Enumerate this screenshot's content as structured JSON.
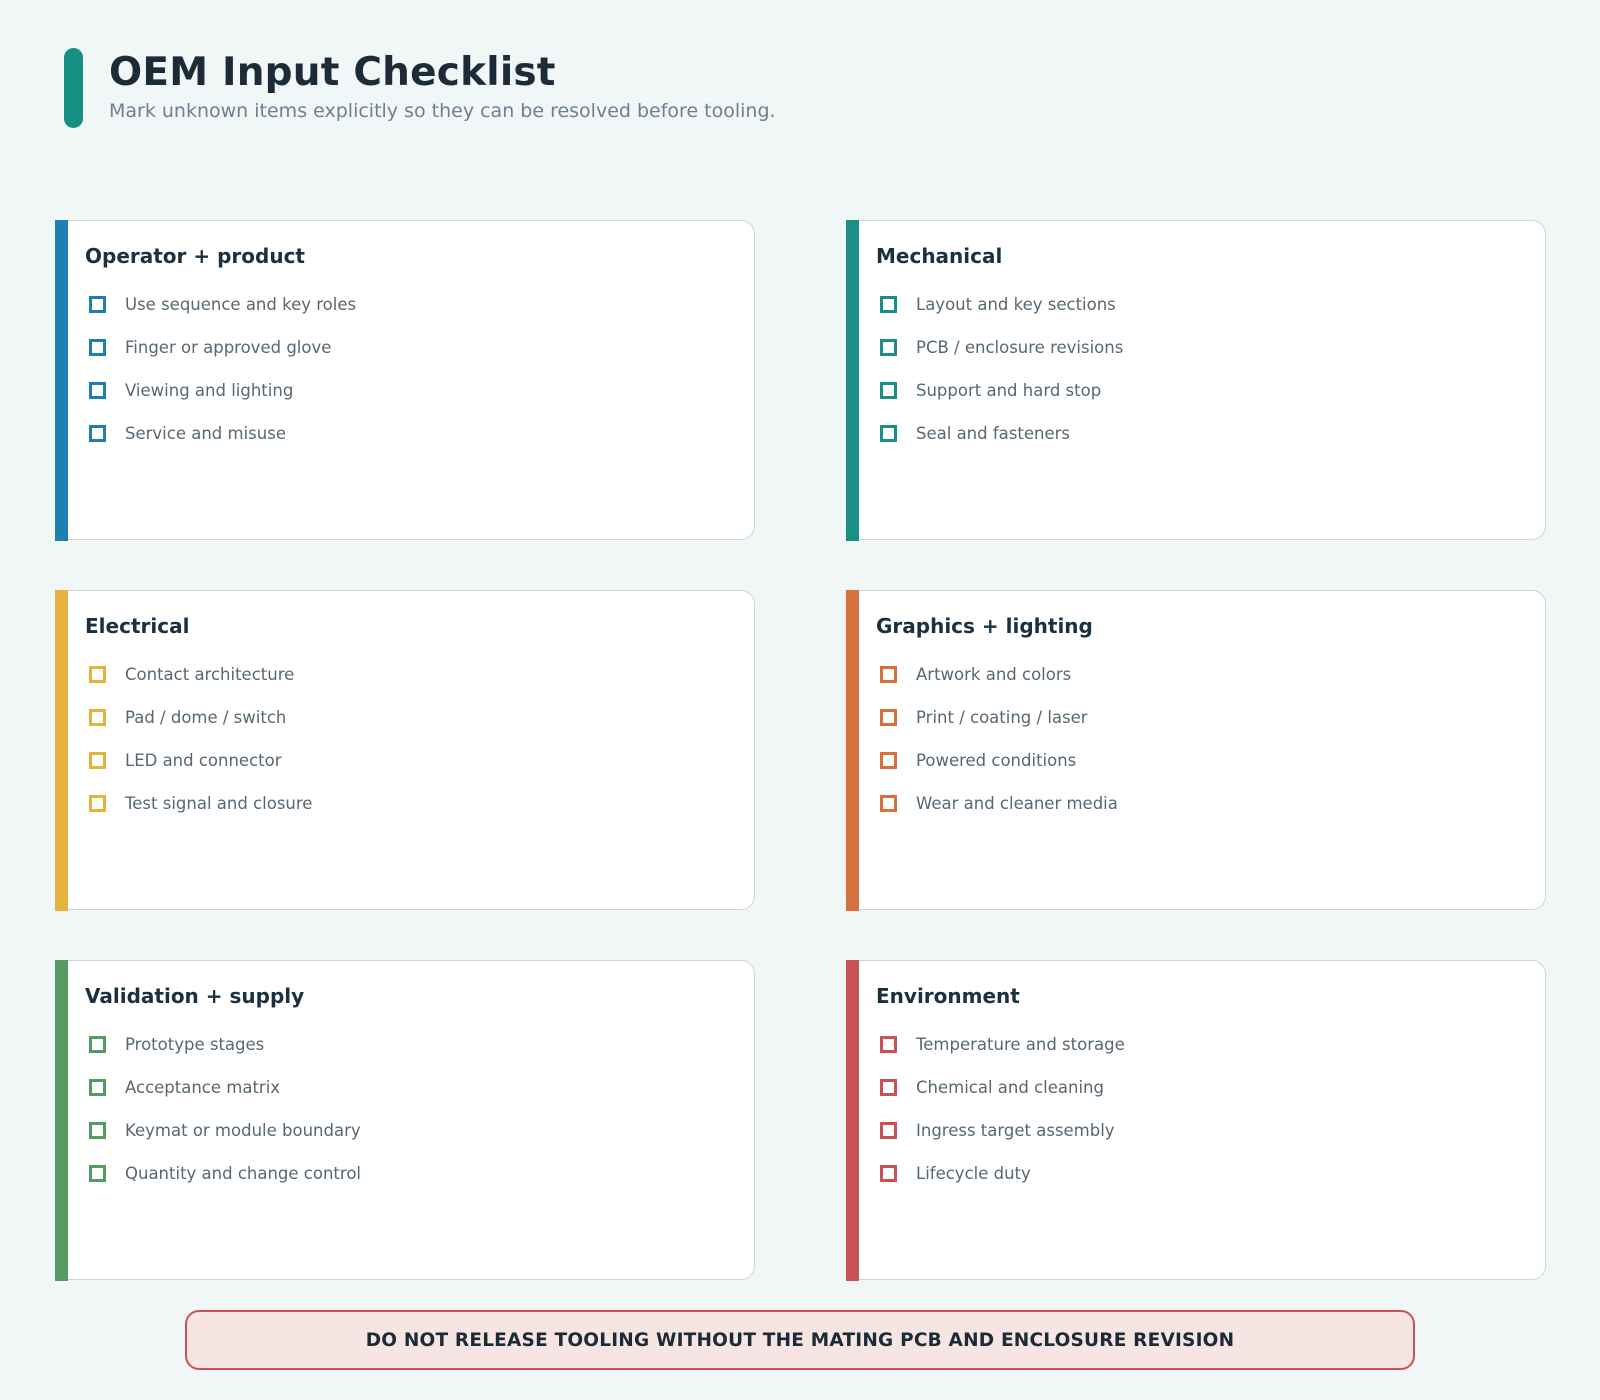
{
  "header": {
    "title": "OEM Input Checklist",
    "subtitle": "Mark unknown items explicitly so they can be resolved before tooling.",
    "accent_color": "#168f83"
  },
  "sections": [
    {
      "title": "Operator + product",
      "color": "#1f7fb0",
      "items": [
        "Use sequence and key roles",
        "Finger or approved glove",
        "Viewing and lighting",
        "Service and misuse"
      ]
    },
    {
      "title": "Mechanical",
      "color": "#1a8f84",
      "items": [
        "Layout and key sections",
        "PCB / enclosure revisions",
        "Support and hard stop",
        "Seal and fasteners"
      ]
    },
    {
      "title": "Electrical",
      "color": "#e6b23e",
      "items": [
        "Contact architecture",
        "Pad / dome / switch",
        "LED and connector",
        "Test signal and closure"
      ]
    },
    {
      "title": "Graphics + lighting",
      "color": "#d6703c",
      "items": [
        "Artwork and colors",
        "Print / coating / laser",
        "Powered conditions",
        "Wear and cleaner media"
      ]
    },
    {
      "title": "Validation + supply",
      "color": "#579a64",
      "items": [
        "Prototype stages",
        "Acceptance matrix",
        "Keymat or module boundary",
        "Quantity and change control"
      ]
    },
    {
      "title": "Environment",
      "color": "#c95257",
      "items": [
        "Temperature and storage",
        "Chemical and cleaning",
        "Ingress target assembly",
        "Lifecycle duty"
      ]
    }
  ],
  "warning": {
    "text": "DO NOT RELEASE TOOLING WITHOUT THE MATING PCB AND ENCLOSURE REVISION",
    "color": "#c95257"
  }
}
